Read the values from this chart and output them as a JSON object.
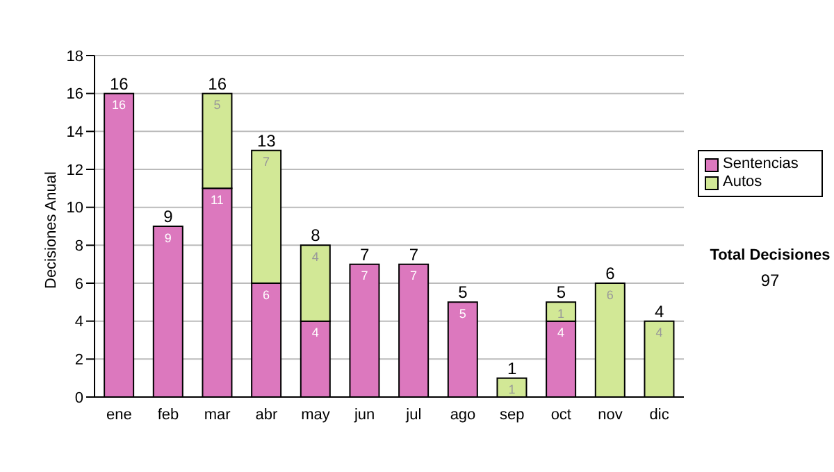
{
  "chart_data": {
    "type": "bar",
    "stacked": true,
    "ylabel": "Decisiones Anual",
    "categories": [
      "ene",
      "feb",
      "mar",
      "abr",
      "may",
      "jun",
      "jul",
      "ago",
      "sep",
      "oct",
      "nov",
      "dic"
    ],
    "series": [
      {
        "name": "Sentencias",
        "color": "#dc78be",
        "values": [
          16,
          9,
          11,
          6,
          4,
          7,
          7,
          5,
          0,
          4,
          0,
          0
        ],
        "value_labels": [
          "16",
          "9",
          "11",
          "6",
          "4",
          "7",
          "7",
          "5",
          null,
          "4",
          null,
          null
        ]
      },
      {
        "name": "Autos",
        "color": "#d2e896",
        "values": [
          0,
          0,
          5,
          7,
          4,
          0,
          0,
          0,
          1,
          1,
          6,
          4
        ],
        "value_labels": [
          null,
          null,
          "5",
          "7",
          "4",
          null,
          null,
          null,
          "1",
          "1",
          "6",
          "4"
        ]
      }
    ],
    "totals": [
      "16",
      "9",
      "16",
      "13",
      "8",
      "7",
      "7",
      "5",
      "1",
      "5",
      "6",
      "4"
    ],
    "ylim": [
      0,
      18
    ],
    "yticks": [
      0,
      2,
      4,
      6,
      8,
      10,
      12,
      14,
      16,
      18
    ],
    "grid": "y",
    "legend": "right",
    "annotations": [
      "Total Decisiones",
      "97"
    ]
  }
}
